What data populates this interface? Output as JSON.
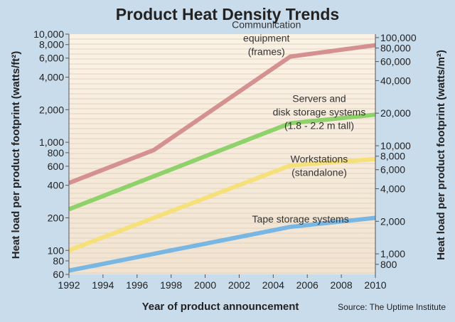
{
  "chart_data": {
    "type": "line",
    "title": "Product Heat Density Trends",
    "xlabel": "Year of product announcement",
    "ylabel": "Heat load per product footprint (watts/ft²)",
    "ylabel_right": "Heat load per product footprint (watts/m²)",
    "source": "Source: The Uptime Institute",
    "x_ticks": [
      1992,
      1994,
      1996,
      1998,
      2000,
      2002,
      2004,
      2006,
      2008,
      2010
    ],
    "xlim": [
      1992,
      2010
    ],
    "y_scale": "log",
    "ylim": [
      60,
      10000
    ],
    "y_ticks": [
      60,
      80,
      100,
      200,
      400,
      600,
      800,
      1000,
      2000,
      4000,
      6000,
      8000,
      10000
    ],
    "y_tick_labels": [
      "60",
      "80",
      "100",
      "200",
      "400",
      "600",
      "800",
      "1,000",
      "2,000",
      "4,000",
      "6,000",
      "8,000",
      "10,000"
    ],
    "y_right_ticks": [
      800,
      1000,
      2000,
      4000,
      6000,
      8000,
      10000,
      20000,
      40000,
      60000,
      80000,
      100000
    ],
    "y_right_tick_labels": [
      "800",
      "1,000",
      "2,000",
      "4,000",
      "6,000",
      "8,000",
      "10,000",
      "20,000",
      "40,000",
      "60,000",
      "80,000",
      "100,000"
    ],
    "grid": true,
    "series": [
      {
        "name": "Communication equipment (frames)",
        "label_lines": [
          "Communication",
          "equipment",
          "(frames)"
        ],
        "color": "#d4918f",
        "x": [
          1992,
          1997,
          2005,
          2010
        ],
        "y": [
          420,
          850,
          6200,
          7900
        ]
      },
      {
        "name": "Servers and disk storage systems (1.8 - 2.2 m tall)",
        "label_lines": [
          "Servers and",
          "disk storage systems",
          "(1.8 - 2.2 m tall)"
        ],
        "color": "#8fd16a",
        "x": [
          1992,
          2005,
          2010
        ],
        "y": [
          240,
          1500,
          1800
        ]
      },
      {
        "name": "Workstations (standalone)",
        "label_lines": [
          "Workstations",
          "(standalone)"
        ],
        "color": "#f5e07a",
        "x": [
          1992,
          2005,
          2010
        ],
        "y": [
          100,
          610,
          700
        ]
      },
      {
        "name": "Tape storage systems",
        "label_lines": [
          "Tape storage systems"
        ],
        "color": "#78b6e4",
        "x": [
          1992,
          2005,
          2010
        ],
        "y": [
          65,
          165,
          200
        ]
      }
    ]
  }
}
